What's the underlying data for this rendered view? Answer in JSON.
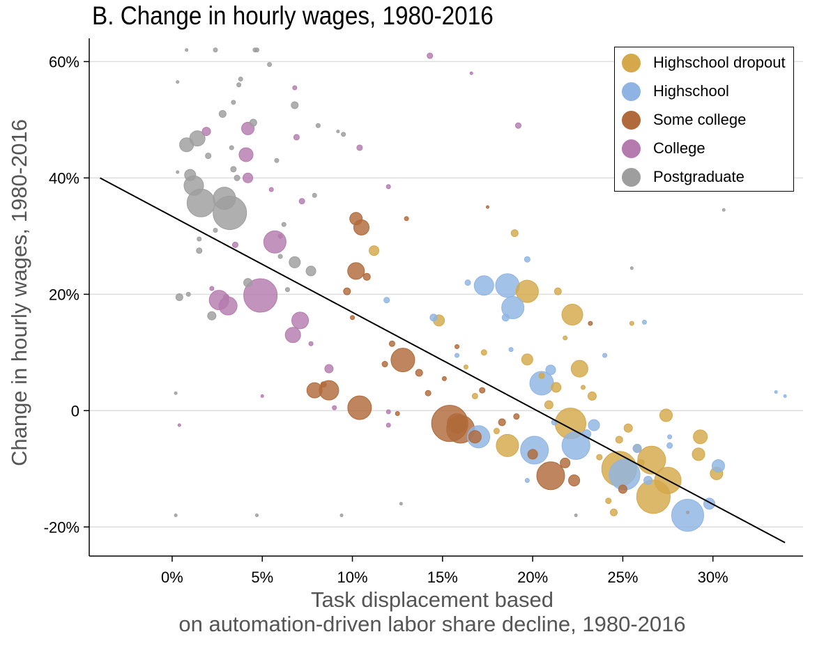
{
  "chart_data": {
    "type": "scatter",
    "title": "B. Change in hourly wages, 1980-2016",
    "xlabel": [
      "Task displacement based",
      "on automation-driven labor share decline, 1980-2016"
    ],
    "ylabel": "Change in hourly wages, 1980-2016",
    "xlim": [
      -0.046,
      0.35
    ],
    "ylim": [
      -0.25,
      0.64
    ],
    "xticks": [
      0,
      0.05,
      0.1,
      0.15,
      0.2,
      0.25,
      0.3
    ],
    "xtick_labels": [
      "0%",
      "5%",
      "10%",
      "15%",
      "20%",
      "25%",
      "30%"
    ],
    "yticks": [
      -0.2,
      0,
      0.2,
      0.4,
      0.6
    ],
    "ytick_labels": [
      "-20%",
      "0",
      "20%",
      "40%",
      "60%"
    ],
    "grid": "horizontal",
    "legend_position": "top-right",
    "fit_line": {
      "x": [
        -0.04,
        0.34
      ],
      "y": [
        0.4,
        -0.227
      ]
    },
    "series": [
      {
        "name": "Highschool dropout",
        "color": "#D4A84B",
        "points": [
          {
            "x": 0.197,
            "y": 0.205,
            "s": 16
          },
          {
            "x": 0.222,
            "y": 0.165,
            "s": 15
          },
          {
            "x": 0.197,
            "y": 0.088,
            "s": 8
          },
          {
            "x": 0.226,
            "y": 0.072,
            "s": 12
          },
          {
            "x": 0.221,
            "y": -0.022,
            "s": 22
          },
          {
            "x": 0.248,
            "y": -0.1,
            "s": 25
          },
          {
            "x": 0.266,
            "y": -0.085,
            "s": 20
          },
          {
            "x": 0.267,
            "y": -0.148,
            "s": 24
          },
          {
            "x": 0.275,
            "y": -0.12,
            "s": 19
          },
          {
            "x": 0.293,
            "y": -0.045,
            "s": 10
          },
          {
            "x": 0.292,
            "y": -0.075,
            "s": 9
          },
          {
            "x": 0.302,
            "y": -0.108,
            "s": 9
          },
          {
            "x": 0.274,
            "y": -0.008,
            "s": 9
          },
          {
            "x": 0.186,
            "y": -0.06,
            "s": 16
          },
          {
            "x": 0.148,
            "y": 0.155,
            "s": 8
          },
          {
            "x": 0.112,
            "y": 0.275,
            "s": 7
          },
          {
            "x": 0.214,
            "y": 0.205,
            "s": 5
          },
          {
            "x": 0.253,
            "y": -0.03,
            "s": 6
          },
          {
            "x": 0.245,
            "y": -0.175,
            "s": 5
          },
          {
            "x": 0.242,
            "y": -0.155,
            "s": 4
          },
          {
            "x": 0.213,
            "y": 0.04,
            "s": 7
          },
          {
            "x": 0.258,
            "y": -0.065,
            "s": 6
          },
          {
            "x": 0.26,
            "y": -0.09,
            "s": 5
          },
          {
            "x": 0.209,
            "y": 0.01,
            "s": 6
          },
          {
            "x": 0.173,
            "y": 0.1,
            "s": 4
          },
          {
            "x": 0.19,
            "y": 0.305,
            "s": 5
          },
          {
            "x": 0.233,
            "y": 0.025,
            "s": 6
          },
          {
            "x": 0.218,
            "y": 0.125,
            "s": 3
          },
          {
            "x": 0.168,
            "y": 0.025,
            "s": 4
          },
          {
            "x": 0.248,
            "y": -0.05,
            "s": 5
          },
          {
            "x": 0.237,
            "y": -0.08,
            "s": 4
          },
          {
            "x": 0.205,
            "y": 0.06,
            "s": 4
          },
          {
            "x": 0.163,
            "y": 0.075,
            "s": 3
          },
          {
            "x": 0.18,
            "y": -0.035,
            "s": 4
          },
          {
            "x": 0.255,
            "y": 0.15,
            "s": 3
          },
          {
            "x": 0.228,
            "y": 0.04,
            "s": 3
          }
        ]
      },
      {
        "name": "Highschool",
        "color": "#8FB4E3",
        "points": [
          {
            "x": 0.173,
            "y": 0.215,
            "s": 14
          },
          {
            "x": 0.186,
            "y": 0.215,
            "s": 17
          },
          {
            "x": 0.189,
            "y": 0.177,
            "s": 16
          },
          {
            "x": 0.205,
            "y": 0.047,
            "s": 17
          },
          {
            "x": 0.201,
            "y": -0.068,
            "s": 20
          },
          {
            "x": 0.224,
            "y": -0.06,
            "s": 20
          },
          {
            "x": 0.251,
            "y": -0.11,
            "s": 22
          },
          {
            "x": 0.286,
            "y": -0.18,
            "s": 23
          },
          {
            "x": 0.17,
            "y": -0.045,
            "s": 16
          },
          {
            "x": 0.303,
            "y": -0.095,
            "s": 9
          },
          {
            "x": 0.298,
            "y": -0.16,
            "s": 8
          },
          {
            "x": 0.234,
            "y": -0.025,
            "s": 8
          },
          {
            "x": 0.258,
            "y": -0.065,
            "s": 6
          },
          {
            "x": 0.21,
            "y": 0.07,
            "s": 7
          },
          {
            "x": 0.23,
            "y": -0.04,
            "s": 6
          },
          {
            "x": 0.264,
            "y": -0.12,
            "s": 6
          },
          {
            "x": 0.119,
            "y": 0.19,
            "s": 4
          },
          {
            "x": 0.145,
            "y": 0.16,
            "s": 5
          },
          {
            "x": 0.197,
            "y": 0.26,
            "s": 4
          },
          {
            "x": 0.164,
            "y": 0.22,
            "s": 4
          },
          {
            "x": 0.185,
            "y": 0.16,
            "s": 5
          },
          {
            "x": 0.24,
            "y": 0.095,
            "s": 3
          },
          {
            "x": 0.276,
            "y": -0.06,
            "s": 4
          },
          {
            "x": 0.262,
            "y": 0.152,
            "s": 3
          },
          {
            "x": 0.212,
            "y": -0.02,
            "s": 4
          },
          {
            "x": 0.197,
            "y": -0.12,
            "s": 3
          },
          {
            "x": 0.158,
            "y": 0.095,
            "s": 3
          },
          {
            "x": 0.188,
            "y": 0.105,
            "s": 3
          },
          {
            "x": 0.276,
            "y": -0.045,
            "s": 3
          },
          {
            "x": 0.335,
            "y": 0.032,
            "s": 2
          },
          {
            "x": 0.34,
            "y": 0.025,
            "s": 2
          }
        ]
      },
      {
        "name": "Some college",
        "color": "#B06A3B",
        "points": [
          {
            "x": 0.154,
            "y": -0.022,
            "s": 26
          },
          {
            "x": 0.16,
            "y": -0.032,
            "s": 20
          },
          {
            "x": 0.104,
            "y": 0.005,
            "s": 17
          },
          {
            "x": 0.128,
            "y": 0.087,
            "s": 17
          },
          {
            "x": 0.21,
            "y": -0.112,
            "s": 20
          },
          {
            "x": 0.087,
            "y": 0.035,
            "s": 14
          },
          {
            "x": 0.079,
            "y": 0.035,
            "s": 11
          },
          {
            "x": 0.102,
            "y": 0.24,
            "s": 12
          },
          {
            "x": 0.105,
            "y": 0.315,
            "s": 11
          },
          {
            "x": 0.102,
            "y": 0.33,
            "s": 9
          },
          {
            "x": 0.158,
            "y": -0.022,
            "s": 14
          },
          {
            "x": 0.168,
            "y": -0.045,
            "s": 9
          },
          {
            "x": 0.223,
            "y": -0.12,
            "s": 8
          },
          {
            "x": 0.218,
            "y": -0.09,
            "s": 7
          },
          {
            "x": 0.25,
            "y": -0.135,
            "s": 6
          },
          {
            "x": 0.2,
            "y": -0.075,
            "s": 7
          },
          {
            "x": 0.137,
            "y": 0.065,
            "s": 5
          },
          {
            "x": 0.097,
            "y": 0.205,
            "s": 5
          },
          {
            "x": 0.108,
            "y": 0.23,
            "s": 5
          },
          {
            "x": 0.142,
            "y": 0.03,
            "s": 4
          },
          {
            "x": 0.183,
            "y": -0.02,
            "s": 5
          },
          {
            "x": 0.118,
            "y": 0.08,
            "s": 4
          },
          {
            "x": 0.122,
            "y": 0.115,
            "s": 4
          },
          {
            "x": 0.172,
            "y": 0.035,
            "s": 4
          },
          {
            "x": 0.191,
            "y": -0.01,
            "s": 4
          },
          {
            "x": 0.13,
            "y": 0.33,
            "s": 3
          },
          {
            "x": 0.232,
            "y": 0.15,
            "s": 3
          },
          {
            "x": 0.084,
            "y": 0.045,
            "s": 4
          },
          {
            "x": 0.1,
            "y": 0.16,
            "s": 3
          },
          {
            "x": 0.151,
            "y": 0.055,
            "s": 3
          },
          {
            "x": 0.175,
            "y": 0.35,
            "s": 2
          },
          {
            "x": 0.158,
            "y": 0.11,
            "s": 3
          },
          {
            "x": 0.125,
            "y": -0.005,
            "s": 3
          }
        ]
      },
      {
        "name": "College",
        "color": "#B57BAE",
        "points": [
          {
            "x": 0.049,
            "y": 0.198,
            "s": 24
          },
          {
            "x": 0.057,
            "y": 0.29,
            "s": 16
          },
          {
            "x": 0.026,
            "y": 0.19,
            "s": 14
          },
          {
            "x": 0.031,
            "y": 0.18,
            "s": 13
          },
          {
            "x": 0.071,
            "y": 0.155,
            "s": 12
          },
          {
            "x": 0.067,
            "y": 0.13,
            "s": 11
          },
          {
            "x": 0.041,
            "y": 0.44,
            "s": 10
          },
          {
            "x": 0.042,
            "y": 0.485,
            "s": 9
          },
          {
            "x": 0.042,
            "y": 0.4,
            "s": 7
          },
          {
            "x": 0.019,
            "y": 0.48,
            "s": 6
          },
          {
            "x": 0.087,
            "y": 0.072,
            "s": 6
          },
          {
            "x": 0.104,
            "y": 0.452,
            "s": 4
          },
          {
            "x": 0.192,
            "y": 0.49,
            "s": 4
          },
          {
            "x": 0.143,
            "y": 0.61,
            "s": 4
          },
          {
            "x": 0.069,
            "y": 0.47,
            "s": 4
          },
          {
            "x": 0.035,
            "y": 0.285,
            "s": 4
          },
          {
            "x": 0.06,
            "y": 0.3,
            "s": 3
          },
          {
            "x": 0.072,
            "y": 0.36,
            "s": 4
          },
          {
            "x": 0.03,
            "y": 0.195,
            "s": 4
          },
          {
            "x": 0.068,
            "y": 0.555,
            "s": 3
          },
          {
            "x": 0.12,
            "y": 0.385,
            "s": 3
          },
          {
            "x": 0.022,
            "y": 0.21,
            "s": 3
          },
          {
            "x": 0.055,
            "y": 0.38,
            "s": 3
          },
          {
            "x": 0.12,
            "y": -0.002,
            "s": 3
          },
          {
            "x": 0.12,
            "y": -0.025,
            "s": 3
          },
          {
            "x": 0.09,
            "y": 0.005,
            "s": 3
          },
          {
            "x": 0.166,
            "y": 0.58,
            "s": 2
          },
          {
            "x": 0.004,
            "y": -0.025,
            "s": 2
          },
          {
            "x": 0.05,
            "y": 0.025,
            "s": 2
          },
          {
            "x": 0.077,
            "y": 0.115,
            "s": 3
          }
        ]
      },
      {
        "name": "Postgraduate",
        "color": "#9E9E9E",
        "points": [
          {
            "x": 0.032,
            "y": 0.34,
            "s": 24
          },
          {
            "x": 0.016,
            "y": 0.357,
            "s": 20
          },
          {
            "x": 0.029,
            "y": 0.365,
            "s": 16
          },
          {
            "x": 0.012,
            "y": 0.387,
            "s": 14
          },
          {
            "x": 0.014,
            "y": 0.468,
            "s": 11
          },
          {
            "x": 0.008,
            "y": 0.457,
            "s": 10
          },
          {
            "x": 0.01,
            "y": 0.405,
            "s": 8
          },
          {
            "x": 0.068,
            "y": 0.255,
            "s": 8
          },
          {
            "x": 0.077,
            "y": 0.24,
            "s": 7
          },
          {
            "x": 0.042,
            "y": 0.22,
            "s": 6
          },
          {
            "x": 0.022,
            "y": 0.163,
            "s": 6
          },
          {
            "x": 0.004,
            "y": 0.195,
            "s": 5
          },
          {
            "x": 0.028,
            "y": 0.51,
            "s": 5
          },
          {
            "x": 0.045,
            "y": 0.495,
            "s": 5
          },
          {
            "x": 0.068,
            "y": 0.525,
            "s": 5
          },
          {
            "x": 0.015,
            "y": 0.275,
            "s": 4
          },
          {
            "x": 0.02,
            "y": 0.438,
            "s": 4
          },
          {
            "x": 0.034,
            "y": 0.415,
            "s": 4
          },
          {
            "x": 0.036,
            "y": 0.4,
            "s": 4
          },
          {
            "x": 0.015,
            "y": 0.295,
            "s": 3
          },
          {
            "x": 0.024,
            "y": 0.31,
            "s": 3
          },
          {
            "x": 0.06,
            "y": 0.265,
            "s": 3
          },
          {
            "x": 0.033,
            "y": 0.452,
            "s": 3
          },
          {
            "x": 0.037,
            "y": 0.56,
            "s": 3
          },
          {
            "x": 0.038,
            "y": 0.57,
            "s": 3
          },
          {
            "x": 0.054,
            "y": 0.595,
            "s": 3
          },
          {
            "x": 0.058,
            "y": 0.43,
            "s": 3
          },
          {
            "x": 0.079,
            "y": 0.37,
            "s": 3
          },
          {
            "x": 0.062,
            "y": 0.32,
            "s": 3
          },
          {
            "x": 0.024,
            "y": 0.62,
            "s": 3
          },
          {
            "x": 0.046,
            "y": 0.62,
            "s": 3
          },
          {
            "x": 0.047,
            "y": 0.62,
            "s": 3
          },
          {
            "x": 0.034,
            "y": 0.53,
            "s": 3
          },
          {
            "x": 0.003,
            "y": 0.565,
            "s": 2
          },
          {
            "x": 0.008,
            "y": 0.62,
            "s": 2
          },
          {
            "x": 0.003,
            "y": 0.41,
            "s": 2
          },
          {
            "x": 0.095,
            "y": 0.475,
            "s": 3
          },
          {
            "x": 0.092,
            "y": 0.48,
            "s": 2
          },
          {
            "x": 0.081,
            "y": 0.49,
            "s": 3
          },
          {
            "x": 0.009,
            "y": 0.2,
            "s": 3
          },
          {
            "x": 0.064,
            "y": 0.208,
            "s": 3
          },
          {
            "x": 0.002,
            "y": 0.03,
            "s": 2
          },
          {
            "x": 0.002,
            "y": -0.18,
            "s": 2
          },
          {
            "x": 0.047,
            "y": -0.18,
            "s": 2
          },
          {
            "x": 0.094,
            "y": -0.18,
            "s": 2
          },
          {
            "x": 0.127,
            "y": -0.16,
            "s": 2
          },
          {
            "x": 0.224,
            "y": -0.18,
            "s": 2
          },
          {
            "x": 0.286,
            "y": -0.175,
            "s": 2
          },
          {
            "x": 0.306,
            "y": 0.345,
            "s": 2
          },
          {
            "x": 0.255,
            "y": 0.245,
            "s": 2
          }
        ]
      }
    ]
  }
}
